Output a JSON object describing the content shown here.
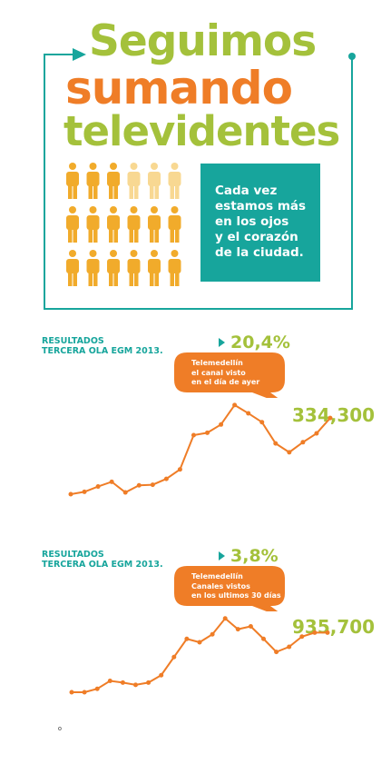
{
  "colors": {
    "green": "#a4c13b",
    "orange": "#ef7d27",
    "teal": "#17a59c",
    "gold": "#f1ab2b",
    "light_gold": "#f8d892"
  },
  "header": {
    "line1": "Seguimos",
    "line2": "sumando",
    "line3": "televidentes"
  },
  "people_grid": {
    "rows": 3,
    "cols": 6,
    "highlighted_row1": 3
  },
  "callout_lines": [
    "Cada vez",
    "estamos más",
    "en los ojos",
    "y el corazón",
    "de la ciudad."
  ],
  "chart_data": [
    {
      "type": "line",
      "label_lines": [
        "RESULTADOS",
        "TERCERA OLA EGM 2013."
      ],
      "percent": "20,4%",
      "bubble_lines": [
        "Telemedellín",
        "el canal visto",
        "en el día de ayer"
      ],
      "total": "334,300",
      "x": [
        1,
        2,
        3,
        4,
        5,
        6,
        7,
        8,
        9,
        10,
        11,
        12,
        13,
        14,
        15,
        16,
        17,
        18,
        19,
        20
      ],
      "values": [
        0,
        4,
        13,
        21,
        3,
        15,
        16,
        26,
        42,
        100,
        104,
        118,
        151,
        137,
        122,
        86,
        71,
        88,
        103,
        129
      ],
      "ylim": [
        0,
        160
      ]
    },
    {
      "type": "line",
      "label_lines": [
        "RESULTADOS",
        "TERCERA OLA EGM 2013."
      ],
      "percent": "3,8%",
      "bubble_lines": [
        "Telemedellín",
        "Canales vistos",
        "en los ultimos 30 días"
      ],
      "total": "935,700",
      "x": [
        1,
        2,
        3,
        4,
        5,
        6,
        7,
        8,
        9,
        10,
        11,
        12,
        13,
        14,
        15,
        16,
        17,
        18,
        19,
        20,
        21
      ],
      "values": [
        0,
        0,
        6,
        20,
        17,
        13,
        17,
        30,
        62,
        94,
        88,
        102,
        130,
        111,
        116,
        94,
        71,
        80,
        98,
        105,
        105
      ],
      "ylim": [
        0,
        160
      ]
    }
  ]
}
